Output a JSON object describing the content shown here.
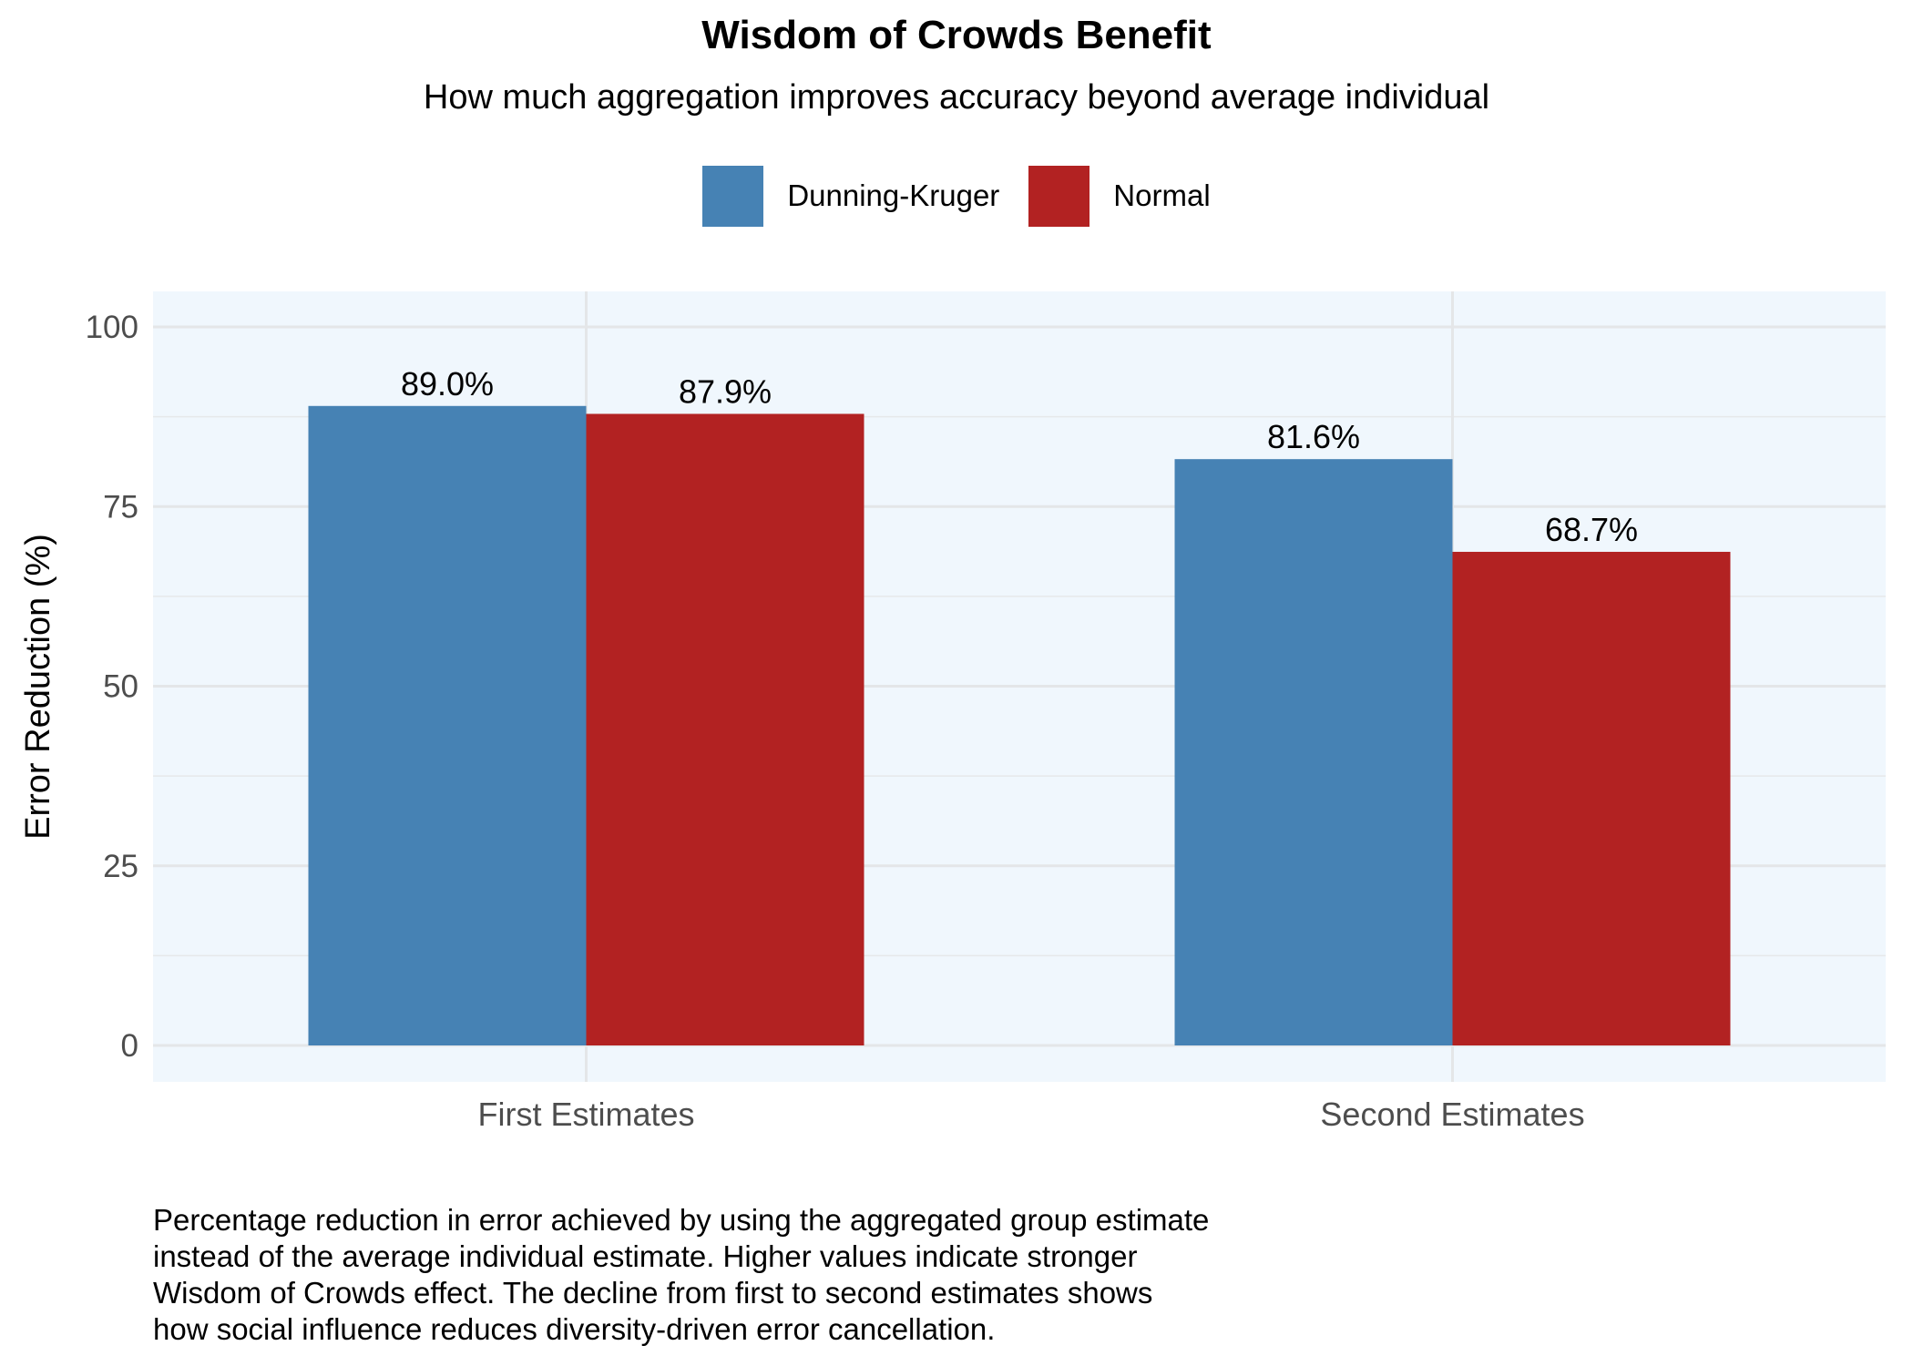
{
  "chart_data": {
    "type": "bar",
    "title": "Wisdom of Crowds Benefit",
    "subtitle": "How much aggregation improves accuracy beyond average individual",
    "xlabel": "",
    "ylabel": "Error Reduction (%)",
    "categories": [
      "First Estimates",
      "Second Estimates"
    ],
    "series": [
      {
        "name": "Dunning-Kruger",
        "color": "#4682B4",
        "values": [
          89.0,
          81.6
        ],
        "labels": [
          "89.0%",
          "81.6%"
        ]
      },
      {
        "name": "Normal",
        "color": "#B22222",
        "values": [
          87.9,
          68.7
        ],
        "labels": [
          "87.9%",
          "68.7%"
        ]
      }
    ],
    "ylim": [
      0,
      100
    ],
    "yticks": [
      "0",
      "25",
      "50",
      "75",
      "100"
    ],
    "grid": true,
    "legend_position": "top",
    "panel_background": "#F0F7FD"
  },
  "caption": [
    "Percentage reduction in error achieved by using the aggregated group estimate",
    "instead of the average individual estimate. Higher values indicate stronger",
    "Wisdom of Crowds effect. The decline from first to second estimates shows",
    "how social influence reduces diversity-driven error cancellation."
  ]
}
